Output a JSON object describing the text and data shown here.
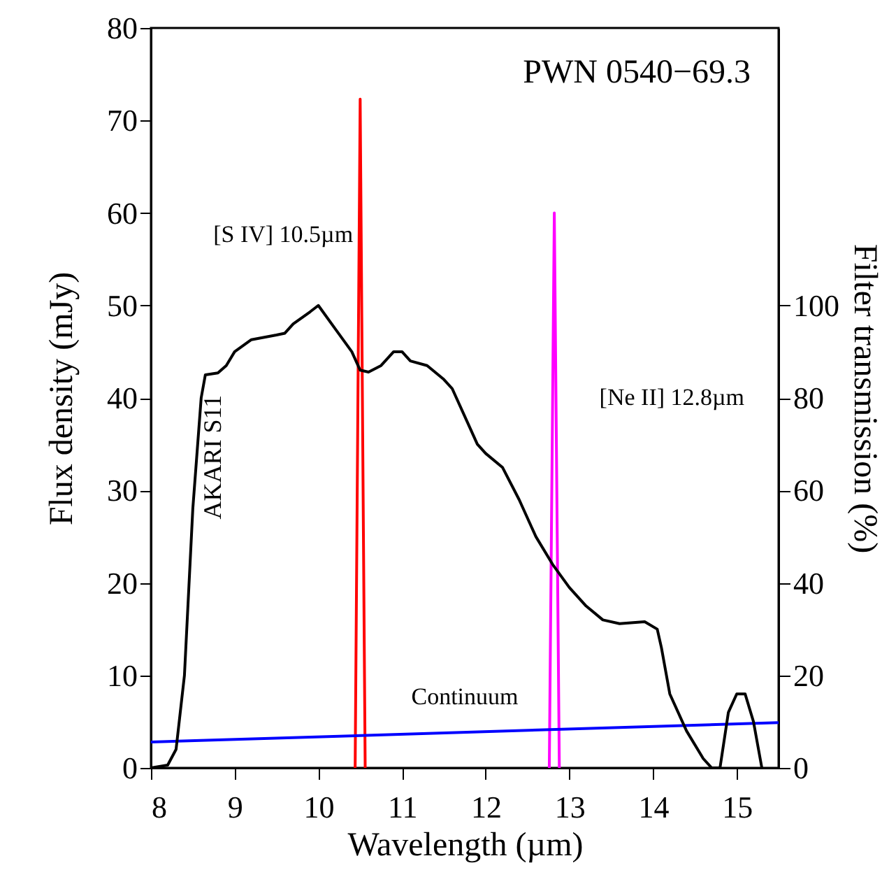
{
  "chart_data": {
    "type": "line",
    "annotations": [
      "PWN 0540−69.3"
    ],
    "xlabel": "Wavelength (µm)",
    "ylabel": "Flux density (mJy)",
    "y2label": "Filter transmission (%)",
    "xlim": [
      8,
      15.5
    ],
    "xticks": [
      8,
      9,
      10,
      11,
      12,
      13,
      14,
      15
    ],
    "ylim": [
      0,
      80
    ],
    "yticks": [
      0,
      10,
      20,
      30,
      40,
      50,
      60,
      70,
      80
    ],
    "y2lim": [
      0,
      160
    ],
    "y2ticks": [
      0,
      20,
      40,
      60,
      80,
      100
    ],
    "grid": false,
    "line_style": "solid",
    "series": [
      {
        "name": "AKARI S11",
        "color": "#000000",
        "axis": "y2",
        "x": [
          8.0,
          8.2,
          8.3,
          8.4,
          8.5,
          8.6,
          8.65,
          8.8,
          8.9,
          9.0,
          9.2,
          9.5,
          9.6,
          9.7,
          9.9,
          10.0,
          10.2,
          10.4,
          10.5,
          10.6,
          10.75,
          10.9,
          11.0,
          11.1,
          11.3,
          11.5,
          11.6,
          11.8,
          11.9,
          12.0,
          12.2,
          12.4,
          12.6,
          12.8,
          13.0,
          13.2,
          13.4,
          13.6,
          13.9,
          14.05,
          14.1,
          14.2,
          14.4,
          14.6,
          14.7,
          14.8,
          14.9,
          15.0,
          15.1,
          15.2,
          15.3
        ],
        "values": [
          0,
          0.6,
          4,
          20,
          56,
          80,
          85,
          85.4,
          87,
          90,
          92.6,
          93.6,
          94,
          96,
          98.6,
          100,
          95,
          90,
          86,
          85.6,
          87,
          90,
          90,
          88,
          87,
          84,
          82,
          74,
          70,
          68,
          65,
          58,
          50,
          44,
          39,
          35,
          32,
          31.2,
          31.6,
          30,
          26,
          16,
          8,
          2,
          0,
          0,
          12,
          16,
          16,
          10,
          0
        ]
      },
      {
        "name": "[S IV] 10.5µm",
        "color": "#ff0000",
        "x": [
          10.44,
          10.47,
          10.5,
          10.53,
          10.56
        ],
        "values": [
          0,
          36,
          72.3,
          36,
          0
        ]
      },
      {
        "name": "[Ne II] 12.8µm",
        "color": "#ff00ff",
        "x": [
          12.76,
          12.79,
          12.82,
          12.85,
          12.88
        ],
        "values": [
          0,
          30,
          60,
          30,
          0
        ]
      },
      {
        "name": "Continuum",
        "color": "#0000ff",
        "x": [
          8.0,
          15.5
        ],
        "values": [
          2.8,
          4.9
        ]
      }
    ]
  }
}
